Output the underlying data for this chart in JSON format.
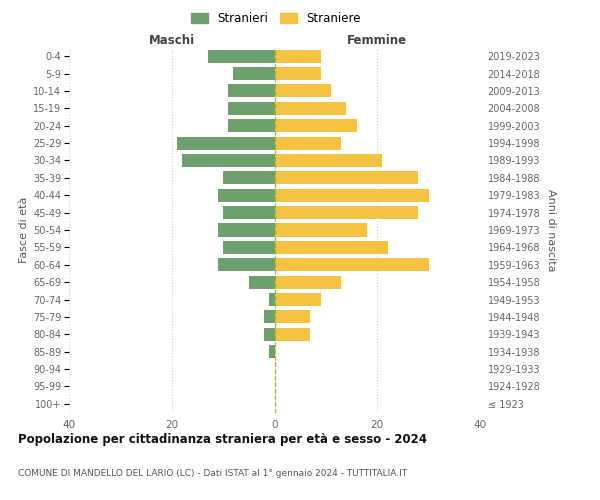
{
  "age_groups": [
    "0-4",
    "5-9",
    "10-14",
    "15-19",
    "20-24",
    "25-29",
    "30-34",
    "35-39",
    "40-44",
    "45-49",
    "50-54",
    "55-59",
    "60-64",
    "65-69",
    "70-74",
    "75-79",
    "80-84",
    "85-89",
    "90-94",
    "95-99",
    "100+"
  ],
  "birth_years": [
    "2019-2023",
    "2014-2018",
    "2009-2013",
    "2004-2008",
    "1999-2003",
    "1994-1998",
    "1989-1993",
    "1984-1988",
    "1979-1983",
    "1974-1978",
    "1969-1973",
    "1964-1968",
    "1959-1963",
    "1954-1958",
    "1949-1953",
    "1944-1948",
    "1939-1943",
    "1934-1938",
    "1929-1933",
    "1924-1928",
    "≤ 1923"
  ],
  "maschi": [
    13,
    8,
    9,
    9,
    9,
    19,
    18,
    10,
    11,
    10,
    11,
    10,
    11,
    5,
    1,
    2,
    2,
    1,
    0,
    0,
    0
  ],
  "femmine": [
    9,
    9,
    11,
    14,
    16,
    13,
    21,
    28,
    30,
    28,
    18,
    22,
    30,
    13,
    9,
    7,
    7,
    0,
    0,
    0,
    0
  ],
  "male_color": "#6ea06e",
  "female_color": "#f5c242",
  "grid_color": "#d0d0d0",
  "bar_height": 0.75,
  "xlim": 40,
  "title": "Popolazione per cittadinanza straniera per età e sesso - 2024",
  "subtitle": "COMUNE DI MANDELLO DEL LARIO (LC) - Dati ISTAT al 1° gennaio 2024 - TUTTITALIA.IT",
  "ylabel_left": "Fasce di età",
  "ylabel_right": "Anni di nascita",
  "header_maschi": "Maschi",
  "header_femmine": "Femmine",
  "legend_maschi": "Stranieri",
  "legend_femmine": "Straniere",
  "background_color": "#ffffff",
  "xticks": [
    -40,
    -20,
    0,
    20,
    40
  ]
}
